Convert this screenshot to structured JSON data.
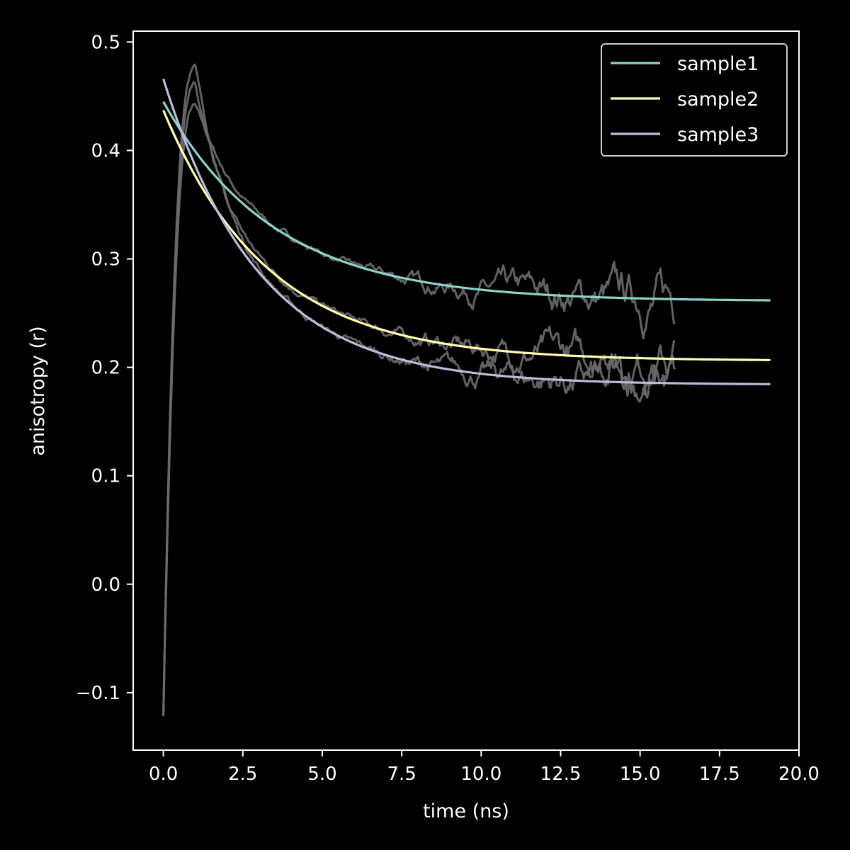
{
  "chart_data": {
    "type": "line",
    "title": "",
    "xlabel": "time (ns)",
    "ylabel": "anisotropy (r)",
    "xlim": [
      -0.95,
      20.0
    ],
    "ylim": [
      -0.153,
      0.51
    ],
    "xticks": [
      0.0,
      2.5,
      5.0,
      7.5,
      10.0,
      12.5,
      15.0,
      17.5,
      20.0
    ],
    "xtick_labels": [
      "0.0",
      "2.5",
      "5.0",
      "7.5",
      "10.0",
      "12.5",
      "15.0",
      "17.5",
      "20.0"
    ],
    "yticks": [
      -0.1,
      0.0,
      0.1,
      0.2,
      0.3,
      0.4,
      0.5
    ],
    "ytick_labels": [
      "−0.1",
      "0.0",
      "0.1",
      "0.2",
      "0.3",
      "0.4",
      "0.5"
    ],
    "grid": false,
    "legend_position": "top-right",
    "background_color": "#000000",
    "axis_color": "#ffffff",
    "raw_trace_color": "#6b6b6b",
    "series": [
      {
        "name": "sample1",
        "color": "#8dd3c7",
        "model": "exp_decay",
        "r_inf": 0.261,
        "amplitude": 0.184,
        "tau": 3.5,
        "x_start": 0.0,
        "x_end": 19.1,
        "raw_peak": 0.44,
        "raw_peak_t": 1.0,
        "raw_end": 16.1
      },
      {
        "name": "sample2",
        "color": "#ffffb3",
        "model": "exp_decay",
        "r_inf": 0.206,
        "amplitude": 0.231,
        "tau": 3.3,
        "x_start": 0.0,
        "x_end": 19.1,
        "raw_peak": 0.462,
        "raw_peak_t": 1.0,
        "raw_end": 16.1
      },
      {
        "name": "sample3",
        "color": "#bebada",
        "model": "exp_decay",
        "r_inf": 0.184,
        "amplitude": 0.282,
        "tau": 3.0,
        "x_start": 0.0,
        "x_end": 19.1,
        "raw_peak": 0.479,
        "raw_peak_t": 1.0,
        "raw_end": 16.1
      }
    ]
  }
}
